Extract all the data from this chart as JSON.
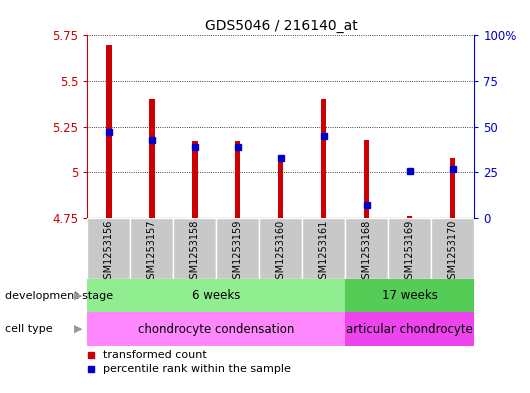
{
  "title": "GDS5046 / 216140_at",
  "samples": [
    "GSM1253156",
    "GSM1253157",
    "GSM1253158",
    "GSM1253159",
    "GSM1253160",
    "GSM1253161",
    "GSM1253168",
    "GSM1253169",
    "GSM1253170"
  ],
  "transformed_counts": [
    5.7,
    5.4,
    5.17,
    5.17,
    5.07,
    5.4,
    5.18,
    4.76,
    5.08
  ],
  "percentile_ranks": [
    47,
    43,
    39,
    39,
    33,
    45,
    7,
    26,
    27
  ],
  "ylim": [
    4.75,
    5.75
  ],
  "yticks": [
    4.75,
    5.0,
    5.25,
    5.5,
    5.75
  ],
  "ytick_labels": [
    "4.75",
    "5",
    "5.25",
    "5.5",
    "5.75"
  ],
  "y2lim": [
    0,
    100
  ],
  "y2ticks": [
    0,
    25,
    50,
    75,
    100
  ],
  "y2tick_labels": [
    "0",
    "25",
    "50",
    "75",
    "100%"
  ],
  "bar_color": "#CC0000",
  "dot_color": "#0000CC",
  "bar_bottom": 4.75,
  "bar_width": 0.12,
  "groups": [
    {
      "label": "6 weeks",
      "start": 0,
      "end": 5,
      "color": "#90EE90"
    },
    {
      "label": "17 weeks",
      "start": 6,
      "end": 8,
      "color": "#55CC55"
    }
  ],
  "cell_types": [
    {
      "label": "chondrocyte condensation",
      "start": 0,
      "end": 5,
      "color": "#FF88FF"
    },
    {
      "label": "articular chondrocyte",
      "start": 6,
      "end": 8,
      "color": "#EE44EE"
    }
  ],
  "dev_stage_label": "development stage",
  "cell_type_label": "cell type",
  "legend_bar_label": "transformed count",
  "legend_dot_label": "percentile rank within the sample",
  "axis_color_left": "#CC0000",
  "axis_color_right": "#0000CC",
  "xtick_bg_color": "#C8C8C8",
  "plot_bg_color": "#FFFFFF"
}
